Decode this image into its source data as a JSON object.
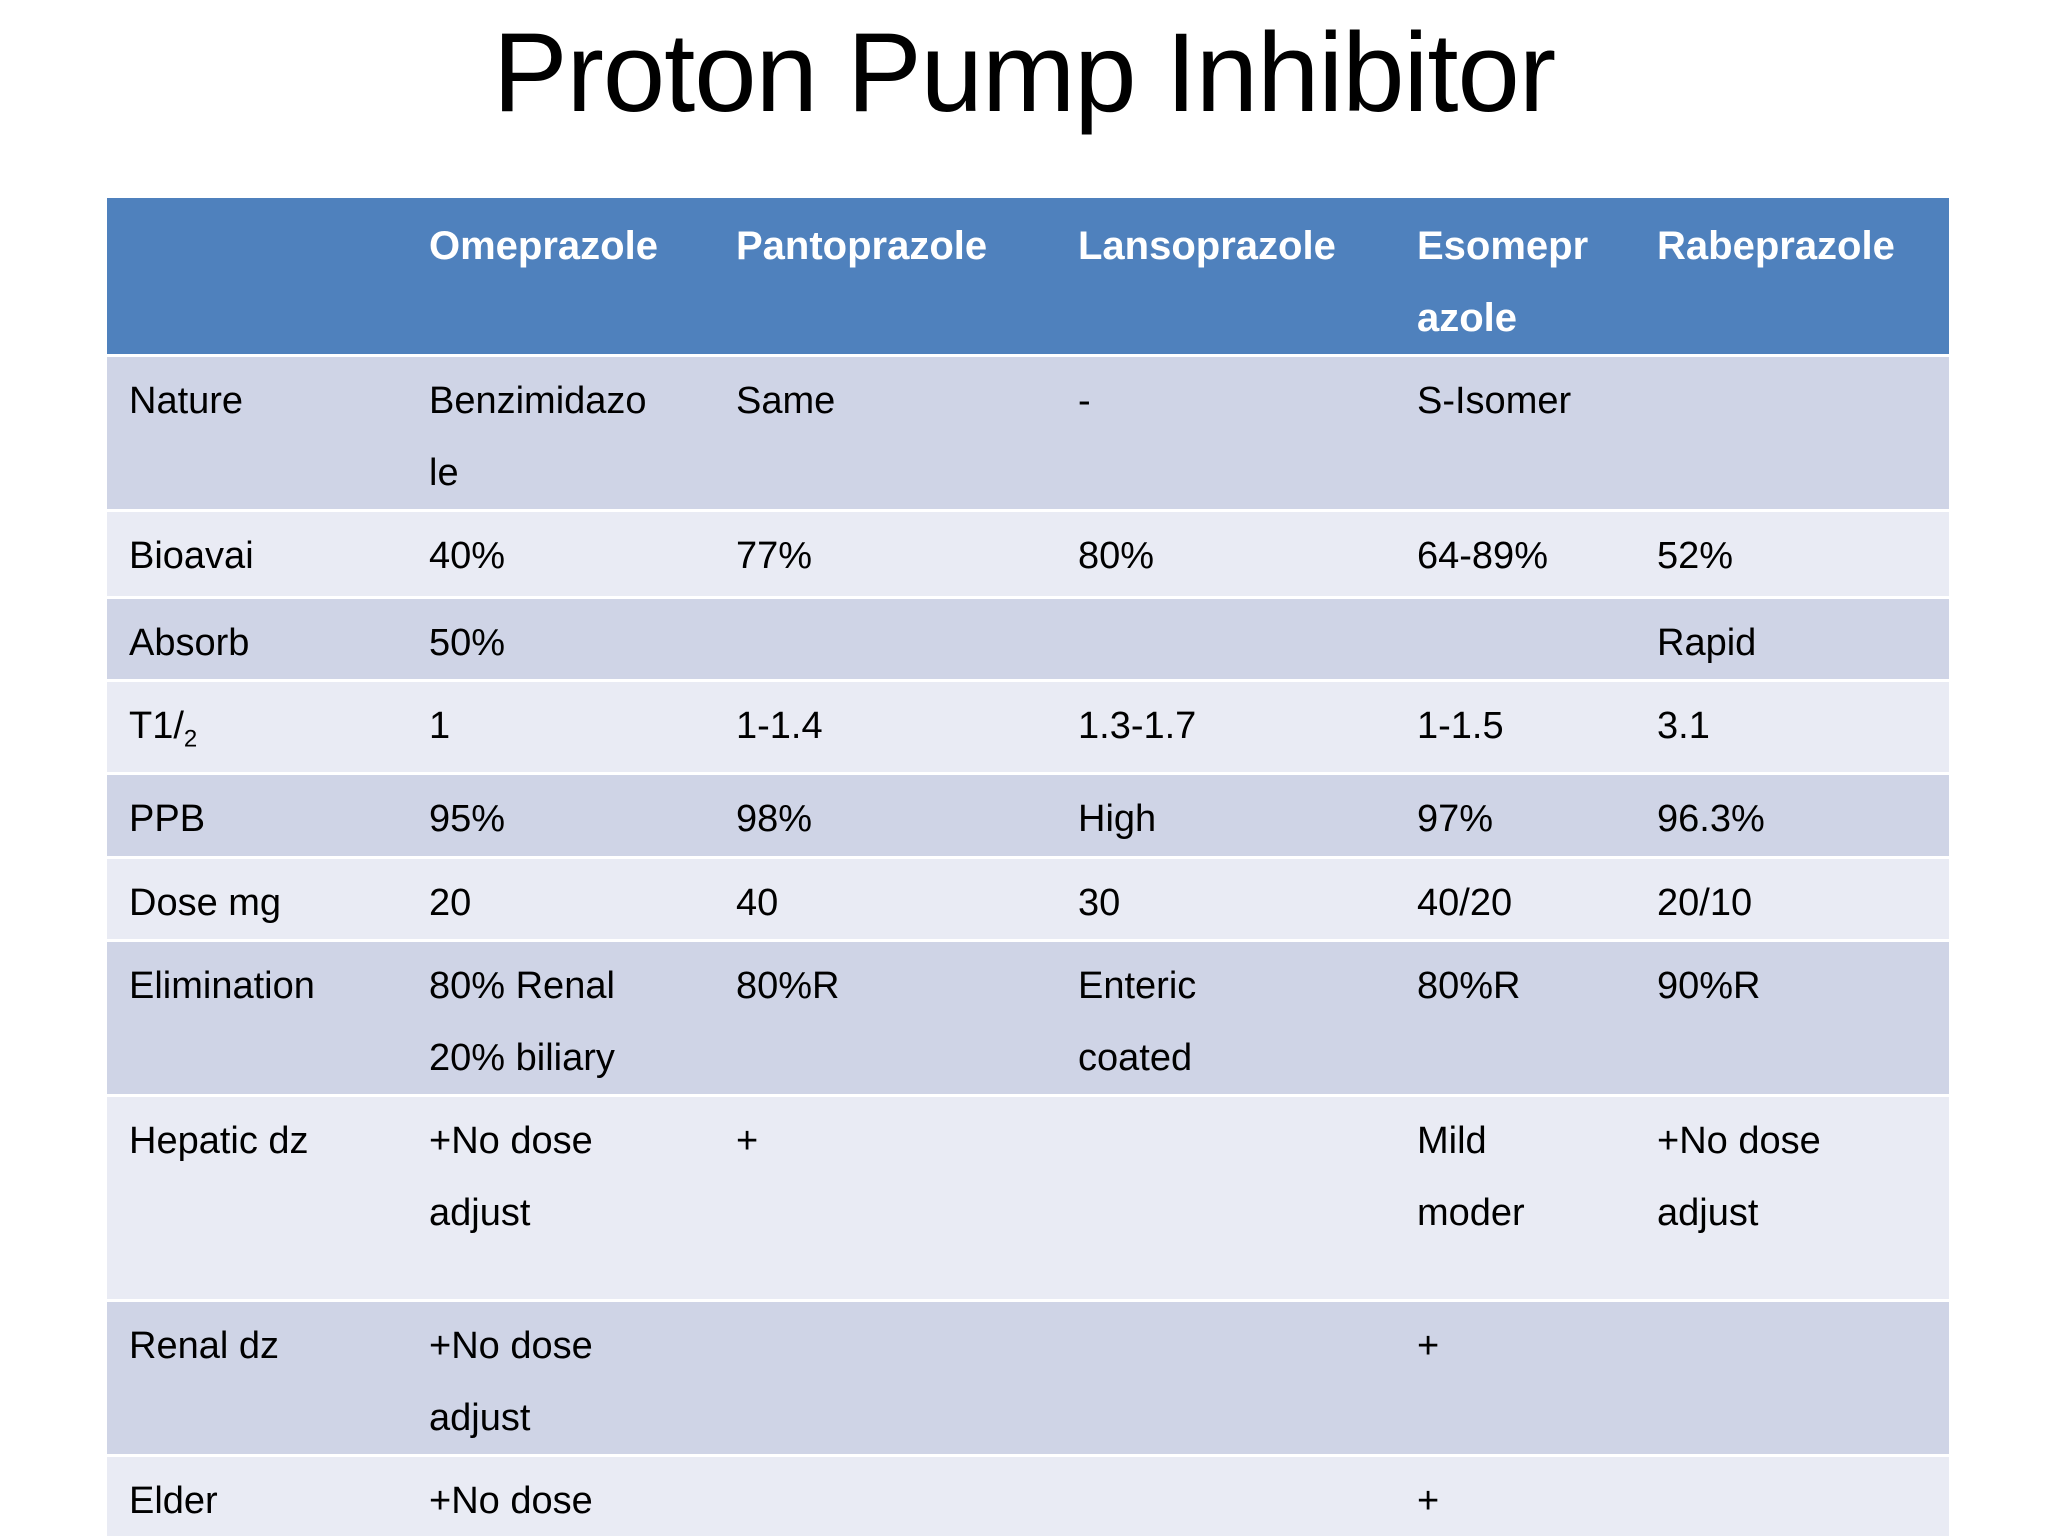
{
  "slide": {
    "title": "Proton Pump Inhibitor"
  },
  "table": {
    "columns": [
      "",
      "Omeprazole",
      "Pantoprazole",
      "Lansoprazole",
      "Esomeprazole",
      "Rabeprazole"
    ],
    "rows": [
      {
        "label": "Nature",
        "cells": [
          "Benzimidazole",
          "Same",
          "-",
          "S-Isomer",
          ""
        ]
      },
      {
        "label": "Bioavai",
        "cells": [
          "40%",
          "77%",
          "80%",
          "64-89%",
          "52%"
        ]
      },
      {
        "label": "Absorb",
        "cells": [
          "50%",
          "",
          "",
          "",
          "Rapid"
        ]
      },
      {
        "label": "T1/",
        "label_sub": "2",
        "cells": [
          "1",
          "1-1.4",
          "1.3-1.7",
          "1-1.5",
          "3.1"
        ]
      },
      {
        "label": "PPB",
        "cells": [
          "95%",
          "98%",
          "High",
          "97%",
          "96.3%"
        ]
      },
      {
        "label": "Dose mg",
        "cells": [
          "20",
          "40",
          "30",
          "40/20",
          "20/10"
        ]
      },
      {
        "label": "Elimination",
        "cells": [
          "80% Renal 20% biliary",
          "80%R",
          "Enteric coated",
          "80%R",
          "90%R"
        ]
      },
      {
        "label": "Hepatic dz",
        "cells": [
          "+No dose adjust",
          "+",
          "",
          "Mild moder",
          "+No dose adjust"
        ]
      },
      {
        "label": "Renal dz",
        "cells": [
          "+No dose adjust",
          "",
          "",
          "+",
          ""
        ]
      },
      {
        "label": "Elder",
        "cells": [
          "+No dose adjust",
          "",
          "",
          "+",
          ""
        ]
      }
    ]
  },
  "colors": {
    "header_bg": "#4F81BD",
    "band_dark": "#CFD4E6",
    "band_light": "#E9EBF4",
    "header_text": "#FFFFFF",
    "body_text": "#000000",
    "title_text": "#000000"
  }
}
